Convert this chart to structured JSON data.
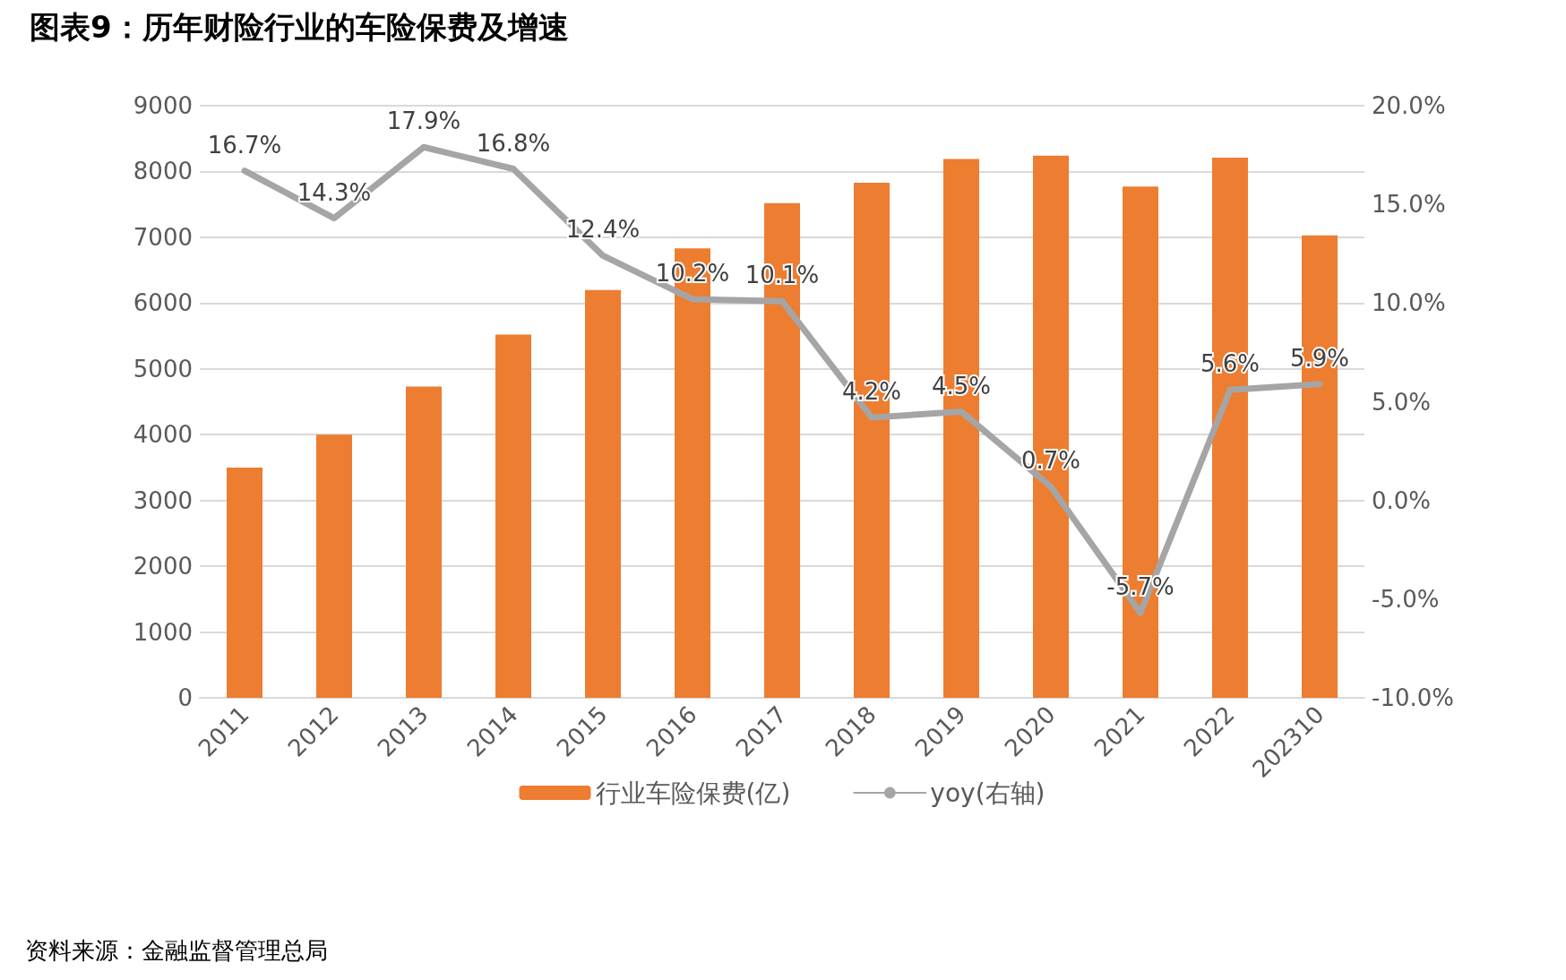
{
  "chart_data": {
    "type": "bar",
    "title": "图表9：历年财险行业的车险保费及增速",
    "categories": [
      "2011",
      "2012",
      "2013",
      "2014",
      "2015",
      "2016",
      "2017",
      "2018",
      "2019",
      "2020",
      "2021",
      "2022",
      "202310"
    ],
    "series": [
      {
        "name": "行业车险保费(亿)",
        "color": "#ed7d31",
        "values": [
          3500,
          4000,
          4730,
          5520,
          6200,
          6830,
          7520,
          7830,
          8190,
          8240,
          7770,
          8210,
          7030
        ]
      },
      {
        "name": "yoy(右轴)",
        "type": "line",
        "axis": "y2",
        "color": "#a5a5a5",
        "values": [
          16.7,
          14.3,
          17.9,
          16.8,
          12.4,
          10.2,
          10.1,
          4.2,
          4.5,
          0.7,
          -5.7,
          5.6,
          5.9
        ],
        "value_labels": [
          "16.7%",
          "14.3%",
          "17.9%",
          "16.8%",
          "12.4%",
          "10.2%",
          "10.1%",
          "4.2%",
          "4.5%",
          "0.7%",
          "-5.7%",
          "5.6%",
          "5.9%"
        ]
      }
    ],
    "ylim": [
      0,
      9000
    ],
    "yticks": [
      0,
      1000,
      2000,
      3000,
      4000,
      5000,
      6000,
      7000,
      8000,
      9000
    ],
    "y2lim": [
      -10,
      20
    ],
    "y2ticks": [
      {
        "value": -10,
        "label": "-10.0%"
      },
      {
        "value": -5,
        "label": "-5.0%"
      },
      {
        "value": 0,
        "label": "0.0%"
      },
      {
        "value": 5,
        "label": "5.0%"
      },
      {
        "value": 10,
        "label": "10.0%"
      },
      {
        "value": 15,
        "label": "15.0%"
      },
      {
        "value": 20,
        "label": "20.0%"
      }
    ],
    "grid": "y",
    "legend": "bottom",
    "marker": "none",
    "line_style": "solid",
    "annotations": [
      "资料来源：金融监督管理总局"
    ]
  }
}
